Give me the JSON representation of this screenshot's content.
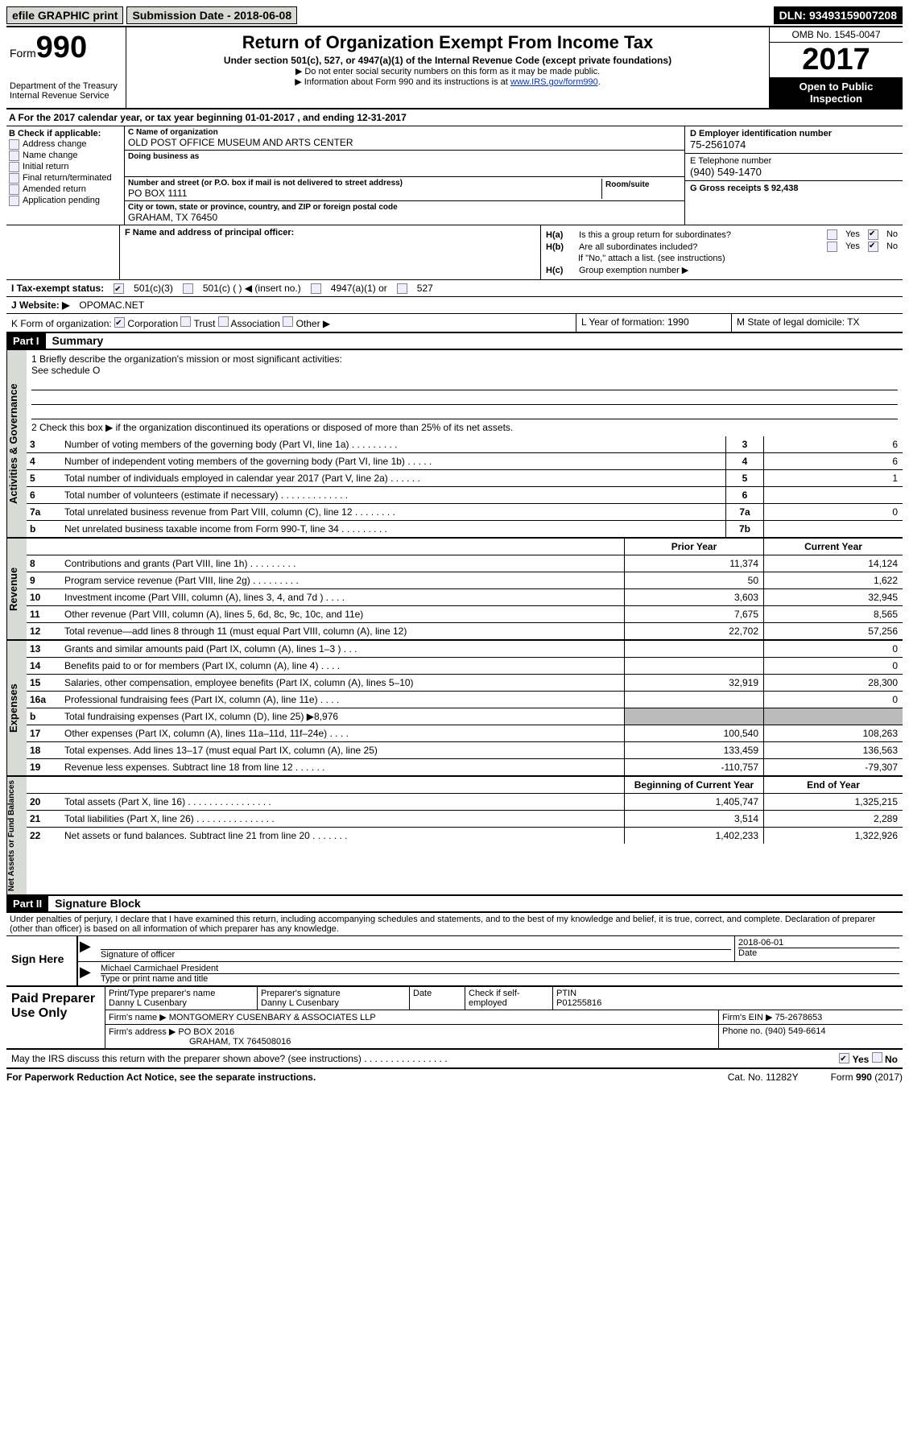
{
  "top": {
    "efile": "efile GRAPHIC print",
    "sub_label": "Submission Date - 2018-06-08",
    "dln": "DLN: 93493159007208"
  },
  "header": {
    "form": "Form",
    "num": "990",
    "dept": "Department of the Treasury",
    "irs": "Internal Revenue Service",
    "title": "Return of Organization Exempt From Income Tax",
    "sub1": "Under section 501(c), 527, or 4947(a)(1) of the Internal Revenue Code (except private foundations)",
    "sub2": "▶ Do not enter social security numbers on this form as it may be made public.",
    "sub3": "▶ Information about Form 990 and its instructions is at ",
    "link": "www.IRS.gov/form990",
    "omb": "OMB No. 1545-0047",
    "year": "2017",
    "open": "Open to Public Inspection"
  },
  "sectionA": "A  For the 2017 calendar year, or tax year beginning 01-01-2017    , and ending 12-31-2017",
  "colB": {
    "header": "B Check if applicable:",
    "items": [
      "Address change",
      "Name change",
      "Initial return",
      "Final return/terminated",
      "Amended return",
      "Application pending"
    ]
  },
  "colC": {
    "name_label": "C Name of organization",
    "name": "OLD POST OFFICE MUSEUM AND ARTS CENTER",
    "dba_label": "Doing business as",
    "street_label": "Number and street (or P.O. box if mail is not delivered to street address)",
    "room_label": "Room/suite",
    "street": "PO BOX 1111",
    "city_label": "City or town, state or province, country, and ZIP or foreign postal code",
    "city": "GRAHAM, TX  76450",
    "f_label": "F Name and address of principal officer:"
  },
  "colD": {
    "ein_label": "D Employer identification number",
    "ein": "75-2561074",
    "phone_label": "E Telephone number",
    "phone": "(940) 549-1470",
    "gross_label": "G Gross receipts $ 92,438"
  },
  "colH": {
    "ha": "Is this a group return for subordinates?",
    "hb": "Are all subordinates included?",
    "hb_note": "If \"No,\" attach a list. (see instructions)",
    "hc": "Group exemption number ▶"
  },
  "lineI": {
    "label": "I  Tax-exempt status:",
    "opts": [
      "501(c)(3)",
      "501(c) (  ) ◀ (insert no.)",
      "4947(a)(1) or",
      "527"
    ]
  },
  "lineJ": {
    "label": "J  Website: ▶",
    "value": "OPOMAC.NET"
  },
  "lineK": {
    "label": "K Form of organization:",
    "opts": [
      "Corporation",
      "Trust",
      "Association",
      "Other ▶"
    ],
    "year_label": "L Year of formation: 1990",
    "state_label": "M State of legal domicile: TX"
  },
  "part1": {
    "title": "Summary",
    "q1": "1 Briefly describe the organization's mission or most significant activities:",
    "q1a": "See schedule O",
    "q2": "2   Check this box ▶        if the organization discontinued its operations or disposed of more than 25% of its net assets.",
    "tab1": "Activities & Governance",
    "tab2": "Revenue",
    "tab3": "Expenses",
    "tab4": "Net Assets or Fund Balances",
    "rows_gov": [
      {
        "n": "3",
        "d": "Number of voting members of the governing body (Part VI, line 1a)   .    .    .    .    .    .    .    .    .",
        "r": "3",
        "v": "6"
      },
      {
        "n": "4",
        "d": "Number of independent voting members of the governing body (Part VI, line 1b)    .   .   .   .   .",
        "r": "4",
        "v": "6"
      },
      {
        "n": "5",
        "d": "Total number of individuals employed in calendar year 2017 (Part V, line 2a)   .   .   .   .   .   .",
        "r": "5",
        "v": "1"
      },
      {
        "n": "6",
        "d": "Total number of volunteers (estimate if necessary)   .   .   .   .   .   .   .   .   .   .   .   .   .",
        "r": "6",
        "v": ""
      },
      {
        "n": "7a",
        "d": "Total unrelated business revenue from Part VIII, column (C), line 12   .   .   .   .   .   .   .   .",
        "r": "7a",
        "v": "0"
      },
      {
        "n": "b",
        "d": "Net unrelated business taxable income from Form 990-T, line 34   .   .   .   .   .   .   .   .   .",
        "r": "7b",
        "v": ""
      }
    ],
    "header_py": "Prior Year",
    "header_cy": "Current Year",
    "rows_rev": [
      {
        "n": "8",
        "d": "Contributions and grants (Part VIII, line 1h)   .   .   .   .   .   .   .   .   .",
        "py": "11,374",
        "cy": "14,124"
      },
      {
        "n": "9",
        "d": "Program service revenue (Part VIII, line 2g)    .   .   .   .   .   .   .   .   .",
        "py": "50",
        "cy": "1,622"
      },
      {
        "n": "10",
        "d": "Investment income (Part VIII, column (A), lines 3, 4, and 7d )   .   .   .   .",
        "py": "3,603",
        "cy": "32,945"
      },
      {
        "n": "11",
        "d": "Other revenue (Part VIII, column (A), lines 5, 6d, 8c, 9c, 10c, and 11e)",
        "py": "7,675",
        "cy": "8,565"
      },
      {
        "n": "12",
        "d": "Total revenue—add lines 8 through 11 (must equal Part VIII, column (A), line 12)",
        "py": "22,702",
        "cy": "57,256"
      }
    ],
    "rows_exp": [
      {
        "n": "13",
        "d": "Grants and similar amounts paid (Part IX, column (A), lines 1–3 )   .   .   .",
        "py": "",
        "cy": "0"
      },
      {
        "n": "14",
        "d": "Benefits paid to or for members (Part IX, column (A), line 4)   .   .   .   .",
        "py": "",
        "cy": "0"
      },
      {
        "n": "15",
        "d": "Salaries, other compensation, employee benefits (Part IX, column (A), lines 5–10)",
        "py": "32,919",
        "cy": "28,300"
      },
      {
        "n": "16a",
        "d": "Professional fundraising fees (Part IX, column (A), line 11e)   .   .   .   .",
        "py": "",
        "cy": "0"
      },
      {
        "n": "b",
        "d": "Total fundraising expenses (Part IX, column (D), line 25) ▶8,976",
        "py": "shaded",
        "cy": "shaded"
      },
      {
        "n": "17",
        "d": "Other expenses (Part IX, column (A), lines 11a–11d, 11f–24e)   .   .   .   .",
        "py": "100,540",
        "cy": "108,263"
      },
      {
        "n": "18",
        "d": "Total expenses. Add lines 13–17 (must equal Part IX, column (A), line 25)",
        "py": "133,459",
        "cy": "136,563"
      },
      {
        "n": "19",
        "d": "Revenue less expenses. Subtract line 18 from line 12   .   .   .   .   .   .",
        "py": "-110,757",
        "cy": "-79,307"
      }
    ],
    "header_bcy": "Beginning of Current Year",
    "header_eoy": "End of Year",
    "rows_net": [
      {
        "n": "20",
        "d": "Total assets (Part X, line 16) .  .  .  .  .  .  .  .  .  .  .  .  .  .  .  .",
        "py": "1,405,747",
        "cy": "1,325,215"
      },
      {
        "n": "21",
        "d": "Total liabilities (Part X, line 26) .  .  .  .  .  .  .  .  .  .  .  .  .  .  .",
        "py": "3,514",
        "cy": "2,289"
      },
      {
        "n": "22",
        "d": "Net assets or fund balances. Subtract line 21 from line 20 .  .  .  .  .  .  .",
        "py": "1,402,233",
        "cy": "1,322,926"
      }
    ]
  },
  "part2": {
    "title": "Signature Block",
    "decl": "Under penalties of perjury, I declare that I have examined this return, including accompanying schedules and statements, and to the best of my knowledge and belief, it is true, correct, and complete. Declaration of preparer (other than officer) is based on all information of which preparer has any knowledge.",
    "sign": "Sign Here",
    "sig_date": "2018-06-01",
    "sig_label": "Signature of officer",
    "date_label": "Date",
    "name": "Michael Carmichael President",
    "name_label": "Type or print name and title"
  },
  "paid": {
    "title": "Paid Preparer Use Only",
    "name_label": "Print/Type preparer's name",
    "name": "Danny L Cusenbary",
    "sig_label": "Preparer's signature",
    "sig": "Danny L Cusenbary",
    "date_label": "Date",
    "check_label": "Check        if self-employed",
    "ptin_label": "PTIN",
    "ptin": "P01255816",
    "firm_label": "Firm's name    ▶",
    "firm": "MONTGOMERY CUSENBARY & ASSOCIATES LLP",
    "ein_label": "Firm's EIN ▶",
    "ein": "75-2678653",
    "addr_label": "Firm's address ▶",
    "addr1": "PO BOX 2016",
    "addr2": "GRAHAM, TX  764508016",
    "phone_label": "Phone no.",
    "phone": "(940) 549-6614"
  },
  "discuss": "May the IRS discuss this return with the preparer shown above? (see instructions)   .   .   .   .   .   .   .   .   .   .   .   .   .   .   .   .",
  "footer": {
    "left": "For Paperwork Reduction Act Notice, see the separate instructions.",
    "mid": "Cat. No. 11282Y",
    "right": "Form 990 (2017)"
  }
}
